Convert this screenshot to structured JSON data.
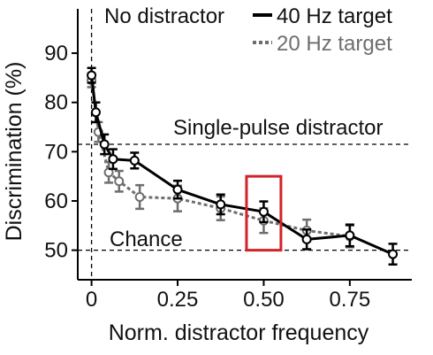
{
  "chart_data": {
    "type": "line",
    "xlabel": "Norm. distractor frequency",
    "ylabel": "Discrimination (%)",
    "xlim": [
      -0.04,
      0.93
    ],
    "ylim": [
      44,
      99
    ],
    "x_ticks": [
      0,
      0.25,
      0.5,
      0.75
    ],
    "x_tick_labels": [
      "0",
      "0.25",
      "0.50",
      "0.75"
    ],
    "y_ticks": [
      50,
      60,
      70,
      80,
      90
    ],
    "y_tick_labels": [
      "50",
      "60",
      "70",
      "80",
      "90"
    ],
    "legend_position": "top-right",
    "series": [
      {
        "name": "40 Hz target",
        "style": "solid",
        "color": "#000000",
        "x": [
          0,
          0.0125,
          0.0375,
          0.0625,
          0.125,
          0.25,
          0.375,
          0.5,
          0.625,
          0.75,
          0.875
        ],
        "y": [
          85.5,
          78,
          71.5,
          68.5,
          68.2,
          62.3,
          59.3,
          57.8,
          52.2,
          53,
          49.2
        ],
        "err": [
          1.5,
          2,
          2,
          2,
          1.6,
          1.8,
          2,
          2.1,
          2,
          2.2,
          2.1
        ]
      },
      {
        "name": "20 Hz target",
        "style": "dashed",
        "color": "#6e6e6e",
        "x": [
          0,
          0.02,
          0.05,
          0.08,
          0.14,
          0.25,
          0.375,
          0.5,
          0.625,
          0.75
        ],
        "y": [
          84.5,
          74,
          65.8,
          64,
          60.8,
          60.5,
          58.5,
          56,
          54,
          52.8
        ],
        "err": [
          1.4,
          2,
          2.1,
          2.1,
          2.4,
          2.6,
          2.4,
          2.5,
          2.2,
          2.2
        ]
      }
    ],
    "reference_lines": {
      "no_distractor_label": "No distractor",
      "single_pulse_value": 71.5,
      "single_pulse_label": "Single-pulse distractor",
      "chance_value": 50,
      "chance_label": "Chance"
    },
    "highlight": {
      "x_range": [
        0.45,
        0.55
      ],
      "y_range": [
        50,
        65
      ],
      "color": "#d1232a"
    }
  }
}
